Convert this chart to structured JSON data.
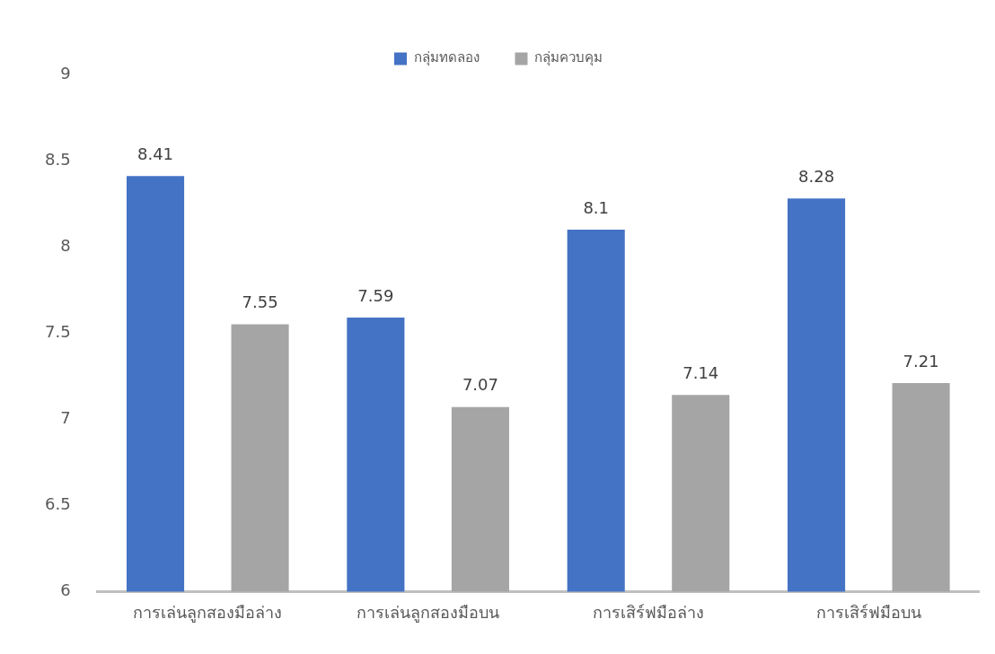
{
  "chart_data": {
    "type": "bar",
    "categories": [
      "การเล่นลูกสองมือล่าง",
      "การเล่นลูกสองมือบน",
      "การเสิร์ฟมือล่าง",
      "การเสิร์ฟมือบน"
    ],
    "series": [
      {
        "name": "กลุ่มทดลอง",
        "color": "#4472c4",
        "values": [
          8.41,
          7.59,
          8.1,
          8.28
        ]
      },
      {
        "name": "กลุ่มควบคุม",
        "color": "#a5a5a5",
        "values": [
          7.55,
          7.07,
          7.14,
          7.21
        ]
      }
    ],
    "ylim": [
      6,
      9
    ],
    "yticks": [
      6,
      6.5,
      7,
      7.5,
      8,
      8.5,
      9
    ],
    "grid": false,
    "legend": "top",
    "data_labels": true
  }
}
